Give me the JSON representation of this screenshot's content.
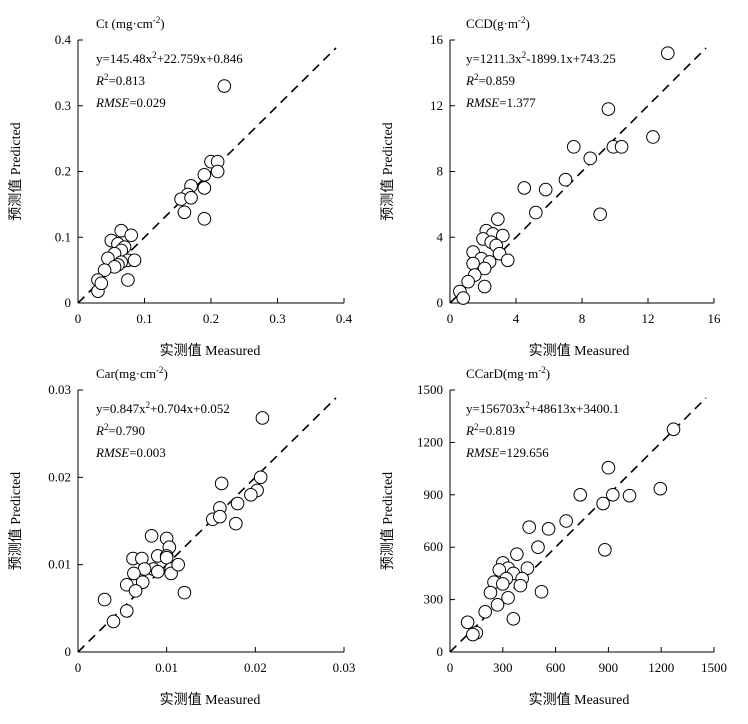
{
  "figure": {
    "x_axis_title": "实测值 Measured",
    "y_axis_title": "预测值 Predicted"
  },
  "chart_data": [
    {
      "type": "scatter",
      "title_base": "Ct",
      "title_unit": " (mg·cm",
      "title_exp": "-2",
      "title_close": ")",
      "eq_a": "y=145.48x",
      "eq_b": "+22.759x+0.846",
      "r2_value": "=0.813",
      "rmse_value": "=0.029",
      "xlim": [
        0,
        0.4
      ],
      "ylim": [
        0,
        0.4
      ],
      "xticks": [
        "0",
        "0.1",
        "0.2",
        "0.3",
        "0.4"
      ],
      "yticks": [
        "0",
        "0.1",
        "0.2",
        "0.3",
        "0.4"
      ],
      "reference_line": "1:1",
      "points": [
        [
          0.22,
          0.33
        ],
        [
          0.2,
          0.215
        ],
        [
          0.21,
          0.215
        ],
        [
          0.19,
          0.195
        ],
        [
          0.21,
          0.2
        ],
        [
          0.17,
          0.178
        ],
        [
          0.165,
          0.165
        ],
        [
          0.19,
          0.175
        ],
        [
          0.155,
          0.158
        ],
        [
          0.17,
          0.16
        ],
        [
          0.16,
          0.138
        ],
        [
          0.19,
          0.128
        ],
        [
          0.065,
          0.11
        ],
        [
          0.08,
          0.103
        ],
        [
          0.05,
          0.095
        ],
        [
          0.06,
          0.09
        ],
        [
          0.07,
          0.085
        ],
        [
          0.065,
          0.08
        ],
        [
          0.055,
          0.075
        ],
        [
          0.045,
          0.068
        ],
        [
          0.075,
          0.065
        ],
        [
          0.085,
          0.065
        ],
        [
          0.065,
          0.062
        ],
        [
          0.06,
          0.058
        ],
        [
          0.055,
          0.055
        ],
        [
          0.04,
          0.05
        ],
        [
          0.03,
          0.035
        ],
        [
          0.03,
          0.018
        ],
        [
          0.035,
          0.03
        ],
        [
          0.075,
          0.035
        ]
      ]
    },
    {
      "type": "scatter",
      "title_base": "CCD",
      "title_unit": "(g·m",
      "title_exp": "-2",
      "title_close": ")",
      "eq_a": "y=1211.3x",
      "eq_b": "-1899.1x+743.25",
      "r2_value": "=0.859",
      "rmse_value": "=1.377",
      "xlim": [
        0,
        16
      ],
      "ylim": [
        0,
        16
      ],
      "xticks": [
        "0",
        "4",
        "8",
        "12",
        "16"
      ],
      "yticks": [
        "0",
        "4",
        "8",
        "12",
        "16"
      ],
      "reference_line": "1:1",
      "points": [
        [
          13.2,
          15.2
        ],
        [
          9.6,
          11.8
        ],
        [
          12.3,
          10.1
        ],
        [
          9.9,
          9.5
        ],
        [
          10.4,
          9.5
        ],
        [
          7.5,
          9.5
        ],
        [
          8.5,
          8.8
        ],
        [
          7.0,
          7.5
        ],
        [
          4.5,
          7.0
        ],
        [
          5.8,
          6.9
        ],
        [
          5.2,
          5.5
        ],
        [
          9.1,
          5.4
        ],
        [
          2.9,
          5.1
        ],
        [
          2.2,
          4.4
        ],
        [
          2.6,
          4.2
        ],
        [
          3.2,
          4.1
        ],
        [
          2.0,
          3.9
        ],
        [
          2.5,
          3.7
        ],
        [
          2.8,
          3.5
        ],
        [
          1.4,
          3.1
        ],
        [
          3.0,
          3.0
        ],
        [
          1.9,
          2.7
        ],
        [
          2.4,
          2.5
        ],
        [
          3.5,
          2.6
        ],
        [
          1.4,
          2.4
        ],
        [
          2.1,
          2.1
        ],
        [
          1.5,
          1.7
        ],
        [
          1.1,
          1.3
        ],
        [
          2.1,
          1.0
        ],
        [
          0.6,
          0.7
        ],
        [
          0.8,
          0.3
        ]
      ]
    },
    {
      "type": "scatter",
      "title_base": "Car",
      "title_unit": "(mg·cm",
      "title_exp": "-2",
      "title_close": ")",
      "eq_a": "y=0.847x",
      "eq_b": "+0.704x+0.052",
      "r2_value": "=0.790",
      "rmse_value": "=0.003",
      "xlim": [
        0,
        0.03
      ],
      "ylim": [
        0,
        0.03
      ],
      "xticks": [
        "0",
        "0.01",
        "0.02",
        "0.03"
      ],
      "yticks": [
        "0",
        "0.01",
        "0.02",
        "0.03"
      ],
      "reference_line": "1:1",
      "points": [
        [
          0.0208,
          0.0268
        ],
        [
          0.0206,
          0.02
        ],
        [
          0.0202,
          0.0185
        ],
        [
          0.0195,
          0.018
        ],
        [
          0.018,
          0.017
        ],
        [
          0.0162,
          0.0193
        ],
        [
          0.016,
          0.0165
        ],
        [
          0.0152,
          0.0152
        ],
        [
          0.016,
          0.0155
        ],
        [
          0.0178,
          0.0147
        ],
        [
          0.0083,
          0.0133
        ],
        [
          0.01,
          0.013
        ],
        [
          0.0103,
          0.012
        ],
        [
          0.0062,
          0.0107
        ],
        [
          0.0072,
          0.0107
        ],
        [
          0.009,
          0.011
        ],
        [
          0.01,
          0.011
        ],
        [
          0.01,
          0.0108
        ],
        [
          0.0105,
          0.0095
        ],
        [
          0.0085,
          0.0095
        ],
        [
          0.0105,
          0.009
        ],
        [
          0.0113,
          0.01
        ],
        [
          0.009,
          0.0092
        ],
        [
          0.0075,
          0.0095
        ],
        [
          0.0063,
          0.009
        ],
        [
          0.0073,
          0.008
        ],
        [
          0.0055,
          0.0077
        ],
        [
          0.0065,
          0.007
        ],
        [
          0.012,
          0.0068
        ],
        [
          0.003,
          0.006
        ],
        [
          0.0055,
          0.0047
        ],
        [
          0.004,
          0.0035
        ]
      ]
    },
    {
      "type": "scatter",
      "title_base": "CCarD",
      "title_unit": "(mg·m",
      "title_exp": "-2",
      "title_close": ")",
      "eq_a": "y=156703x",
      "eq_b": "+48613x+3400.1",
      "r2_value": "=0.819",
      "rmse_value": "=129.656",
      "xlim": [
        0,
        1500
      ],
      "ylim": [
        0,
        1500
      ],
      "xticks": [
        "0",
        "300",
        "600",
        "900",
        "1200",
        "1500"
      ],
      "yticks": [
        "0",
        "300",
        "600",
        "900",
        "1200",
        "1500"
      ],
      "reference_line": "1:1",
      "points": [
        [
          1270,
          1275
        ],
        [
          900,
          1055
        ],
        [
          1195,
          935
        ],
        [
          740,
          900
        ],
        [
          925,
          900
        ],
        [
          1020,
          895
        ],
        [
          870,
          850
        ],
        [
          660,
          750
        ],
        [
          450,
          715
        ],
        [
          560,
          705
        ],
        [
          500,
          600
        ],
        [
          880,
          585
        ],
        [
          300,
          510
        ],
        [
          380,
          560
        ],
        [
          330,
          480
        ],
        [
          440,
          480
        ],
        [
          280,
          470
        ],
        [
          360,
          450
        ],
        [
          410,
          420
        ],
        [
          320,
          420
        ],
        [
          400,
          380
        ],
        [
          250,
          400
        ],
        [
          300,
          390
        ],
        [
          230,
          340
        ],
        [
          520,
          345
        ],
        [
          330,
          310
        ],
        [
          270,
          270
        ],
        [
          200,
          230
        ],
        [
          360,
          190
        ],
        [
          100,
          170
        ],
        [
          150,
          110
        ],
        [
          130,
          100
        ]
      ]
    }
  ]
}
